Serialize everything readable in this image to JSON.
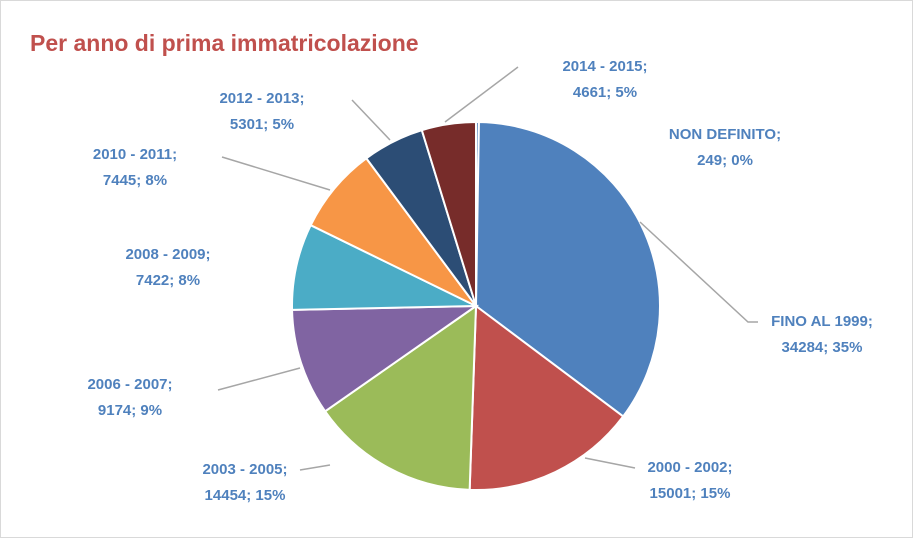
{
  "chart_data": {
    "type": "pie",
    "title": "Per anno di prima immatricolazione",
    "categories": [
      "NON DEFINITO;",
      "FINO AL 1999;",
      "2000 - 2002;",
      "2003 - 2005;",
      "2006 - 2007;",
      "2008 - 2009;",
      "2010 - 2011;",
      "2012 - 2013;",
      "2014 - 2015;"
    ],
    "values": [
      249,
      34284,
      15001,
      14454,
      9174,
      7422,
      7445,
      5301,
      4661
    ],
    "value_labels": [
      "249; 0%",
      "34284; 35%",
      "15001; 15%",
      "14454; 15%",
      "9174; 9%",
      "7422; 8%",
      "7445; 8%",
      "5301; 5%",
      "4661; 5%"
    ],
    "colors": [
      "#4f81bd",
      "#4f81bd",
      "#c0504d",
      "#9bbb59",
      "#8064a2",
      "#4bacc6",
      "#f79646",
      "#2c4d75",
      "#772c2a"
    ]
  }
}
